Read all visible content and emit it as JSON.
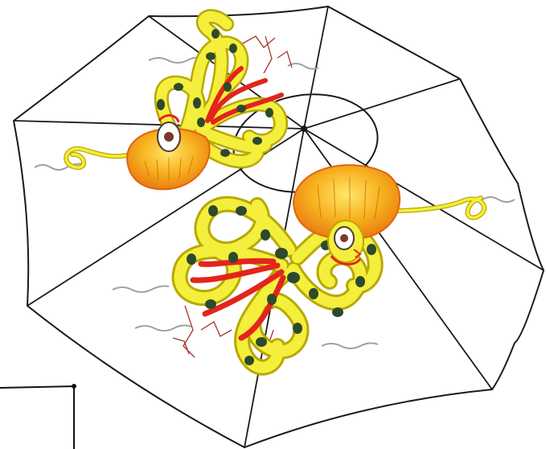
{
  "artwork": {
    "subject": "umbrella-canopy-with-two-jellyfish-creatures",
    "colors": {
      "outline": "#1a1a1a",
      "tentacle_yellow": "#f4ee3c",
      "tentacle_edge": "#b8a800",
      "spot": "#2d4a2d",
      "arm_red": "#e3241c",
      "bell_orange": "#f7b21f",
      "bell_edge": "#e0640f",
      "thread_grey": "#9aa2a2",
      "root_red": "#a8322b"
    }
  }
}
